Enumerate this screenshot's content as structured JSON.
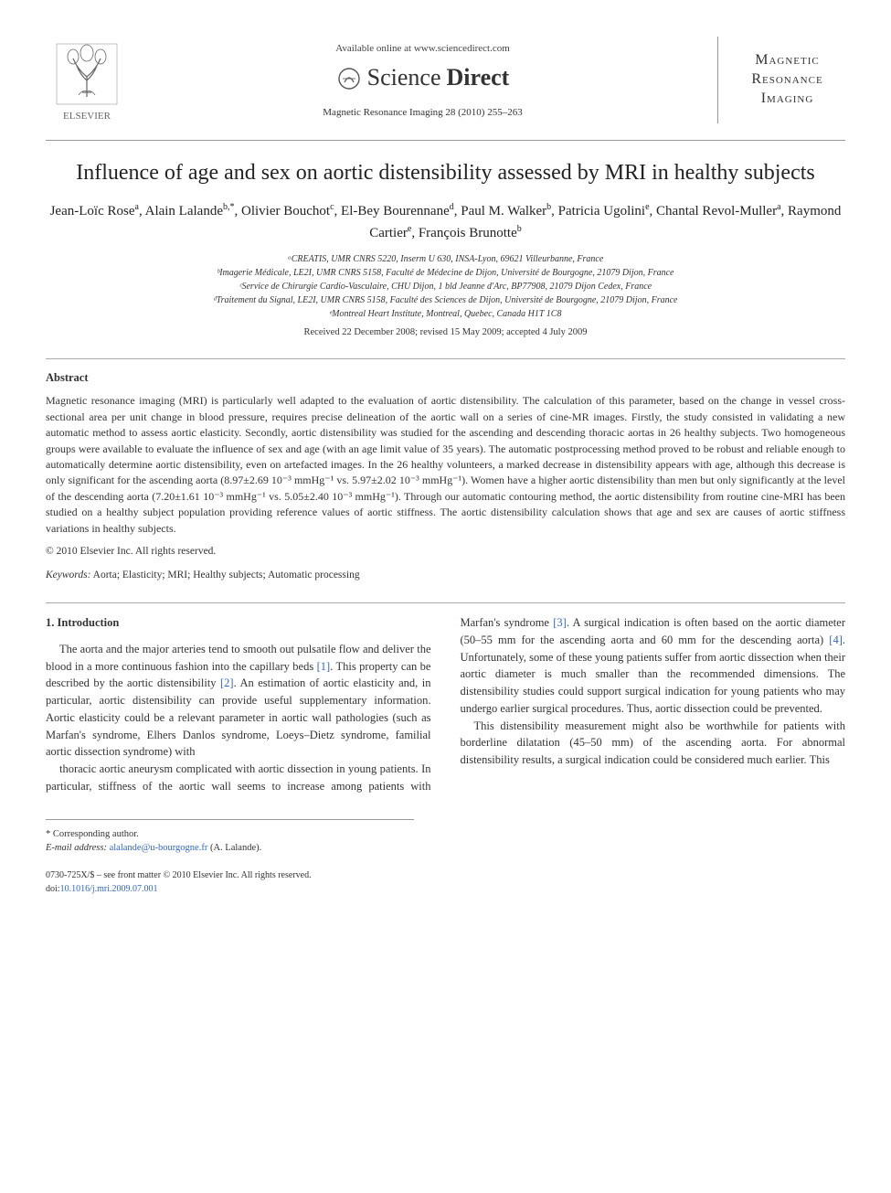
{
  "header": {
    "publisher_name": "ELSEVIER",
    "available_text": "Available online at www.sciencedirect.com",
    "platform_name_a": "Science",
    "platform_name_b": "Direct",
    "citation": "Magnetic Resonance Imaging 28 (2010) 255–263",
    "journal_line1": "Magnetic",
    "journal_line2": "Resonance",
    "journal_line3": "Imaging"
  },
  "title": "Influence of age and sex on aortic distensibility assessed by MRI in healthy subjects",
  "authors_html": "Jean-Loïc Rose<sup>a</sup>, Alain Lalande<sup>b,*</sup>, Olivier Bouchot<sup>c</sup>, El-Bey Bourennane<sup>d</sup>, Paul M. Walker<sup>b</sup>, Patricia Ugolini<sup>e</sup>, Chantal Revol-Muller<sup>a</sup>, Raymond Cartier<sup>e</sup>, François Brunotte<sup>b</sup>",
  "affiliations": [
    "ᵃCREATIS, UMR CNRS 5220, Inserm U 630, INSA-Lyon, 69621 Villeurbanne, France",
    "ᵇImagerie Médicale, LE2I, UMR CNRS 5158, Faculté de Médecine de Dijon, Université de Bourgogne, 21079 Dijon, France",
    "ᶜService de Chirurgie Cardio-Vasculaire, CHU Dijon, 1 bld Jeanne d'Arc, BP77908, 21079 Dijon Cedex, France",
    "ᵈTraitement du Signal, LE2I, UMR CNRS 5158, Faculté des Sciences de Dijon, Université de Bourgogne, 21079 Dijon, France",
    "ᵉMontreal Heart Institute, Montreal, Quebec, Canada H1T 1C8"
  ],
  "dates": "Received 22 December 2008; revised 15 May 2009; accepted 4 July 2009",
  "abstract": {
    "heading": "Abstract",
    "body": "Magnetic resonance imaging (MRI) is particularly well adapted to the evaluation of aortic distensibility. The calculation of this parameter, based on the change in vessel cross-sectional area per unit change in blood pressure, requires precise delineation of the aortic wall on a series of cine-MR images. Firstly, the study consisted in validating a new automatic method to assess aortic elasticity. Secondly, aortic distensibility was studied for the ascending and descending thoracic aortas in 26 healthy subjects. Two homogeneous groups were available to evaluate the influence of sex and age (with an age limit value of 35 years). The automatic postprocessing method proved to be robust and reliable enough to automatically determine aortic distensibility, even on artefacted images. In the 26 healthy volunteers, a marked decrease in distensibility appears with age, although this decrease is only significant for the ascending aorta (8.97±2.69 10⁻³ mmHg⁻¹ vs. 5.97±2.02 10⁻³ mmHg⁻¹). Women have a higher aortic distensibility than men but only significantly at the level of the descending aorta (7.20±1.61 10⁻³ mmHg⁻¹ vs. 5.05±2.40 10⁻³ mmHg⁻¹). Through our automatic contouring method, the aortic distensibility from routine cine-MRI has been studied on a healthy subject population providing reference values of aortic stiffness. The aortic distensibility calculation shows that age and sex are causes of aortic stiffness variations in healthy subjects.",
    "copyright": "© 2010 Elsevier Inc. All rights reserved."
  },
  "keywords": {
    "label": "Keywords:",
    "text": "Aorta; Elasticity; MRI; Healthy subjects; Automatic processing"
  },
  "section1": {
    "heading": "1. Introduction",
    "para1": "The aorta and the major arteries tend to smooth out pulsatile flow and deliver the blood in a more continuous fashion into the capillary beds [1]. This property can be described by the aortic distensibility [2]. An estimation of aortic elasticity and, in particular, aortic distensibility can provide useful supplementary information. Aortic elasticity could be a relevant parameter in aortic wall pathologies (such as Marfan's syndrome, Elhers Danlos syndrome, Loeys–Dietz syndrome, familial aortic dissection syndrome) with",
    "para2": "thoracic aortic aneurysm complicated with aortic dissection in young patients. In particular, stiffness of the aortic wall seems to increase among patients with Marfan's syndrome [3]. A surgical indication is often based on the aortic diameter (50–55 mm for the ascending aorta and 60 mm for the descending aorta) [4]. Unfortunately, some of these young patients suffer from aortic dissection when their aortic diameter is much smaller than the recommended dimensions. The distensibility studies could support surgical indication for young patients who may undergo earlier surgical procedures. Thus, aortic dissection could be prevented.",
    "para3": "This distensibility measurement might also be worthwhile for patients with borderline dilatation (45–50 mm) of the ascending aorta. For abnormal distensibility results, a surgical indication could be considered much earlier. This"
  },
  "footer": {
    "corr_label": "* Corresponding author.",
    "email_label": "E-mail address:",
    "email": "alalande@u-bourgogne.fr",
    "email_name": "(A. Lalande).",
    "issn_line": "0730-725X/$ – see front matter © 2010 Elsevier Inc. All rights reserved.",
    "doi_label": "doi:",
    "doi": "10.1016/j.mri.2009.07.001"
  },
  "colors": {
    "link": "#3366cc",
    "text": "#333333",
    "rule": "#999999"
  }
}
